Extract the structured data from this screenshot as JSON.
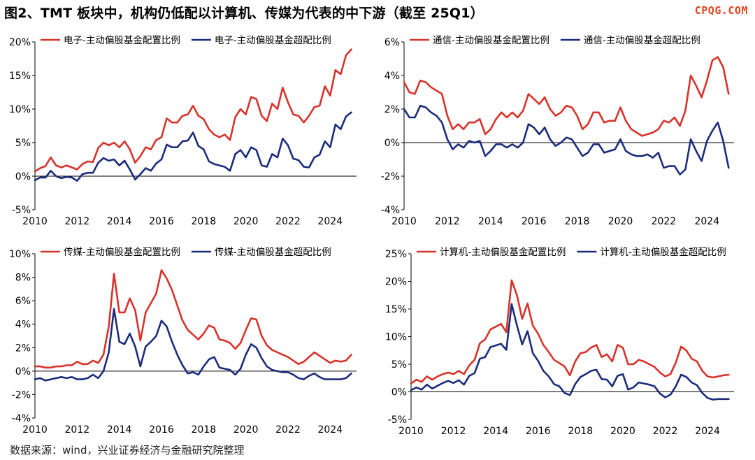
{
  "figure_title": "图2、TMT 板块中，机构仍低配以计算机、传媒为代表的中下游（截至 25Q1）",
  "watermark": "CPQG.COM",
  "source_note": "数据来源：wind，兴业证券经济与金融研究院整理",
  "colors": {
    "allocation": "#d7332a",
    "overweight": "#1b2c7b",
    "axis": "#000000",
    "zero_line": "#000000"
  },
  "chart_data": [
    {
      "type": "line",
      "x_ticks": [
        "2010",
        "2012",
        "2014",
        "2016",
        "2018",
        "2020",
        "2022",
        "2024"
      ],
      "xlim": [
        2010,
        2025.25
      ],
      "ylim": [
        -5,
        20
      ],
      "y_ticks": [
        "-5%",
        "0%",
        "5%",
        "10%",
        "15%",
        "20%"
      ],
      "y_tick_values": [
        -5,
        0,
        5,
        10,
        15,
        20
      ],
      "legend": "top-left",
      "series": [
        {
          "name": "电子-主动偏股基金配置比例",
          "values": [
            0.7,
            1.2,
            1.5,
            2.8,
            1.6,
            1.3,
            1.6,
            1.3,
            1.0,
            1.8,
            2.2,
            2.1,
            4.2,
            5.0,
            4.6,
            5.0,
            4.3,
            5.2,
            4.0,
            2.0,
            3.0,
            4.3,
            4.0,
            5.4,
            5.8,
            8.6,
            8.0,
            8.0,
            9.0,
            9.2,
            10.5,
            9.0,
            8.5,
            7.0,
            6.2,
            5.8,
            6.2,
            5.4,
            8.8,
            10.0,
            9.2,
            11.8,
            11.5,
            9.0,
            8.2,
            10.8,
            10.0,
            13.2,
            11.0,
            9.2,
            9.0,
            8.0,
            9.0,
            10.3,
            10.5,
            13.4,
            12.0,
            15.8,
            15.2,
            18.0,
            18.9
          ]
        },
        {
          "name": "电子-主动偏股基金超配比例",
          "values": [
            -0.6,
            -0.2,
            -0.2,
            0.8,
            0.0,
            -0.3,
            -0.1,
            -0.2,
            -0.7,
            0.3,
            0.5,
            0.5,
            2.0,
            2.7,
            2.3,
            2.5,
            1.6,
            2.3,
            1.0,
            -0.5,
            0.3,
            1.2,
            0.8,
            1.9,
            2.5,
            4.7,
            4.3,
            4.3,
            5.2,
            5.3,
            6.5,
            4.5,
            4.0,
            2.2,
            1.8,
            1.6,
            1.4,
            0.8,
            3.3,
            3.9,
            2.8,
            4.3,
            3.9,
            1.6,
            1.4,
            3.3,
            2.8,
            5.6,
            4.6,
            2.6,
            2.4,
            1.4,
            1.3,
            2.8,
            3.2,
            5.2,
            4.3,
            7.7,
            7.0,
            8.9,
            9.5
          ]
        }
      ]
    },
    {
      "type": "line",
      "x_ticks": [
        "2010",
        "2012",
        "2014",
        "2016",
        "2018",
        "2020",
        "2022",
        "2024"
      ],
      "xlim": [
        2010,
        2025.25
      ],
      "ylim": [
        -4,
        6
      ],
      "y_ticks": [
        "-4%",
        "-2%",
        "0%",
        "2%",
        "4%",
        "6%"
      ],
      "y_tick_values": [
        -4,
        -2,
        0,
        2,
        4,
        6
      ],
      "legend": "top-left",
      "series": [
        {
          "name": "通信-主动偏股基金配置比例",
          "values": [
            3.6,
            3.0,
            2.9,
            3.7,
            3.6,
            3.3,
            3.1,
            2.9,
            1.6,
            0.8,
            1.1,
            0.8,
            1.2,
            1.2,
            1.4,
            0.5,
            0.8,
            1.4,
            1.8,
            1.5,
            1.8,
            1.5,
            1.9,
            2.9,
            2.6,
            2.3,
            2.7,
            2.0,
            1.6,
            1.8,
            2.2,
            2.1,
            1.6,
            0.8,
            1.1,
            1.8,
            1.8,
            1.2,
            1.3,
            1.3,
            2.1,
            1.3,
            0.8,
            0.6,
            0.4,
            0.5,
            0.6,
            0.8,
            1.3,
            1.2,
            1.5,
            1.0,
            1.9,
            4.0,
            3.4,
            2.7,
            3.7,
            4.9,
            5.1,
            4.5,
            2.9
          ]
        },
        {
          "name": "通信-主动偏股基金超配比例",
          "values": [
            2.0,
            1.5,
            1.5,
            2.2,
            2.1,
            1.8,
            1.6,
            1.2,
            0.2,
            -0.4,
            -0.1,
            -0.3,
            0.1,
            0.0,
            0.1,
            -0.8,
            -0.5,
            -0.1,
            -0.1,
            -0.3,
            -0.1,
            -0.3,
            0.0,
            1.1,
            0.9,
            0.5,
            0.9,
            0.2,
            -0.2,
            0.0,
            0.3,
            0.2,
            -0.3,
            -0.8,
            -0.6,
            -0.1,
            -0.1,
            -0.6,
            -0.5,
            -0.4,
            0.2,
            -0.5,
            -0.7,
            -0.8,
            -0.8,
            -0.7,
            -0.9,
            -0.6,
            -1.5,
            -1.4,
            -1.4,
            -1.9,
            -1.6,
            0.2,
            -0.5,
            -1.1,
            0.1,
            0.7,
            1.2,
            0.1,
            -1.5
          ]
        }
      ]
    },
    {
      "type": "line",
      "x_ticks": [
        "2010",
        "2012",
        "2014",
        "2016",
        "2018",
        "2020",
        "2022",
        "2024"
      ],
      "xlim": [
        2010,
        2025.25
      ],
      "ylim": [
        -4,
        10
      ],
      "y_ticks": [
        "-4%",
        "-2%",
        "0%",
        "2%",
        "4%",
        "6%",
        "8%",
        "10%"
      ],
      "y_tick_values": [
        -4,
        -2,
        0,
        2,
        4,
        6,
        8,
        10
      ],
      "legend": "top-left",
      "series": [
        {
          "name": "传媒-主动偏股基金配置比例",
          "values": [
            0.4,
            0.4,
            0.3,
            0.3,
            0.4,
            0.4,
            0.5,
            0.5,
            0.8,
            0.6,
            0.6,
            0.9,
            0.7,
            1.4,
            3.8,
            8.3,
            5.0,
            5.0,
            6.2,
            5.2,
            2.6,
            5.0,
            5.8,
            6.6,
            8.6,
            7.9,
            6.9,
            5.6,
            4.3,
            3.5,
            3.1,
            2.7,
            3.2,
            3.9,
            3.7,
            2.7,
            2.6,
            2.4,
            1.9,
            2.4,
            3.5,
            4.5,
            4.4,
            3.0,
            2.2,
            1.8,
            1.6,
            1.4,
            1.2,
            0.9,
            0.6,
            0.8,
            1.2,
            1.6,
            1.3,
            1.0,
            0.7,
            0.9,
            0.8,
            0.9,
            1.4
          ]
        },
        {
          "name": "传媒-主动偏股基金超配比例",
          "values": [
            -0.7,
            -0.6,
            -0.8,
            -0.7,
            -0.6,
            -0.5,
            -0.6,
            -0.5,
            -0.7,
            -0.7,
            -0.6,
            -0.3,
            -0.6,
            0.0,
            1.6,
            5.3,
            2.5,
            2.3,
            3.2,
            2.1,
            0.4,
            2.1,
            2.5,
            3.0,
            4.3,
            3.8,
            2.5,
            1.4,
            0.5,
            -0.2,
            -0.1,
            -0.3,
            0.4,
            1.0,
            1.2,
            0.3,
            0.2,
            0.1,
            -0.3,
            0.2,
            1.4,
            2.3,
            2.0,
            1.1,
            0.4,
            0.1,
            0.0,
            -0.1,
            -0.1,
            -0.3,
            -0.6,
            -0.7,
            -0.4,
            -0.2,
            -0.5,
            -0.7,
            -0.7,
            -0.7,
            -0.7,
            -0.6,
            -0.2
          ]
        }
      ]
    },
    {
      "type": "line",
      "x_ticks": [
        "2010",
        "2012",
        "2014",
        "2016",
        "2018",
        "2020",
        "2022",
        "2024"
      ],
      "xlim": [
        2010,
        2025.25
      ],
      "ylim": [
        -5,
        25
      ],
      "y_ticks": [
        "-5%",
        "0%",
        "5%",
        "10%",
        "15%",
        "20%",
        "25%"
      ],
      "y_tick_values": [
        -5,
        0,
        5,
        10,
        15,
        20,
        25
      ],
      "legend": "top-left",
      "series": [
        {
          "name": "计算机-主动偏股基金配置比例",
          "values": [
            1.5,
            2.2,
            1.8,
            2.8,
            2.2,
            2.8,
            3.2,
            3.5,
            3.2,
            3.8,
            3.2,
            4.8,
            5.8,
            8.8,
            9.5,
            11.3,
            11.8,
            12.3,
            10.8,
            20.2,
            17.5,
            13.2,
            16.0,
            12.0,
            10.5,
            8.5,
            7.2,
            5.8,
            5.2,
            4.6,
            3.0,
            5.5,
            7.0,
            7.2,
            8.0,
            8.5,
            6.3,
            6.8,
            5.5,
            8.5,
            8.0,
            5.0,
            5.0,
            5.8,
            5.5,
            5.0,
            4.5,
            3.5,
            2.8,
            3.2,
            5.3,
            8.2,
            7.5,
            6.0,
            5.5,
            3.8,
            2.8,
            2.6,
            2.8,
            3.0,
            3.1
          ]
        },
        {
          "name": "计算机-主动偏股基金超配比例",
          "values": [
            0.3,
            0.8,
            0.4,
            1.3,
            0.6,
            1.1,
            1.6,
            2.0,
            1.6,
            2.1,
            1.3,
            2.9,
            3.4,
            6.0,
            6.3,
            8.1,
            8.4,
            8.7,
            7.6,
            15.9,
            12.0,
            8.6,
            11.0,
            7.0,
            5.6,
            3.8,
            2.8,
            1.4,
            1.0,
            -0.2,
            -0.6,
            1.4,
            2.7,
            3.2,
            3.8,
            4.0,
            2.3,
            2.2,
            1.0,
            2.9,
            3.2,
            0.4,
            0.8,
            1.7,
            1.5,
            1.3,
            1.0,
            -0.3,
            -1.0,
            -0.5,
            1.0,
            3.1,
            2.7,
            1.7,
            1.2,
            -0.2,
            -1.1,
            -1.4,
            -1.3,
            -1.3,
            -1.3
          ]
        }
      ]
    }
  ]
}
